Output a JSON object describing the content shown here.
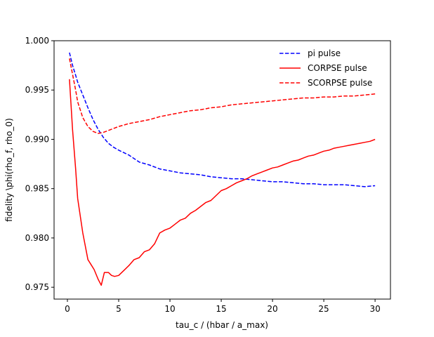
{
  "chart_data": {
    "type": "line",
    "xlabel": "tau_c / (hbar / a_max)",
    "ylabel": "fidelity \\phi(rho_f, rho_0)",
    "xlim": [
      -1.3,
      31.5
    ],
    "ylim": [
      0.9738,
      1.0
    ],
    "xticks": [
      "0",
      "5",
      "10",
      "15",
      "20",
      "25",
      "30"
    ],
    "yticks": [
      "0.975",
      "0.980",
      "0.985",
      "0.990",
      "0.995",
      "1.000"
    ],
    "grid": false,
    "legend_position": "top-right",
    "series": [
      {
        "name": "pi pulse",
        "color": "#0000ff",
        "dash": "dashed",
        "x": [
          0.2,
          0.5,
          0.8,
          1.0,
          1.5,
          2.0,
          2.5,
          3.0,
          3.5,
          4.0,
          4.5,
          5.0,
          6.0,
          7.0,
          8.0,
          9.0,
          10.0,
          11.0,
          12.0,
          13.0,
          14.0,
          15.0,
          16.0,
          17.0,
          18.0,
          19.0,
          20.0,
          21.0,
          22.0,
          23.0,
          24.0,
          25.0,
          26.0,
          27.0,
          28.0,
          29.0,
          30.0
        ],
        "y": [
          0.9988,
          0.9975,
          0.9965,
          0.9958,
          0.9945,
          0.9932,
          0.992,
          0.991,
          0.9902,
          0.9896,
          0.9892,
          0.9889,
          0.9884,
          0.9877,
          0.9874,
          0.987,
          0.9868,
          0.9866,
          0.9865,
          0.9864,
          0.9862,
          0.9861,
          0.986,
          0.986,
          0.9859,
          0.9858,
          0.9857,
          0.9857,
          0.9856,
          0.9855,
          0.9855,
          0.9854,
          0.9854,
          0.9854,
          0.9853,
          0.9852,
          0.9853
        ]
      },
      {
        "name": "CORPSE pulse",
        "color": "#ff0000",
        "dash": "solid",
        "x": [
          0.2,
          0.5,
          0.8,
          1.0,
          1.5,
          2.0,
          2.3,
          2.6,
          3.0,
          3.3,
          3.6,
          4.0,
          4.3,
          4.6,
          5.0,
          5.5,
          6.0,
          6.5,
          7.0,
          7.5,
          8.0,
          8.5,
          9.0,
          9.5,
          10.0,
          10.5,
          11.0,
          11.5,
          12.0,
          12.5,
          13.0,
          13.5,
          14.0,
          14.5,
          15.0,
          15.5,
          16.0,
          16.5,
          17.0,
          17.5,
          18.0,
          18.5,
          19.0,
          19.5,
          20.0,
          20.5,
          21.0,
          21.5,
          22.0,
          22.5,
          23.0,
          23.5,
          24.0,
          24.5,
          25.0,
          25.5,
          26.0,
          26.5,
          27.0,
          27.5,
          28.0,
          28.5,
          29.0,
          29.5,
          30.0
        ],
        "y": [
          0.9961,
          0.991,
          0.987,
          0.984,
          0.9805,
          0.9778,
          0.9773,
          0.9768,
          0.9758,
          0.9752,
          0.9765,
          0.9765,
          0.9762,
          0.9761,
          0.9762,
          0.9767,
          0.9772,
          0.9778,
          0.978,
          0.9786,
          0.9788,
          0.9794,
          0.9805,
          0.9808,
          0.981,
          0.9814,
          0.9818,
          0.982,
          0.9825,
          0.9828,
          0.9832,
          0.9836,
          0.9838,
          0.9843,
          0.9848,
          0.985,
          0.9853,
          0.9856,
          0.9858,
          0.986,
          0.9863,
          0.9865,
          0.9867,
          0.9869,
          0.9871,
          0.9872,
          0.9874,
          0.9876,
          0.9878,
          0.9879,
          0.9881,
          0.9883,
          0.9884,
          0.9886,
          0.9888,
          0.9889,
          0.9891,
          0.9892,
          0.9893,
          0.9894,
          0.9895,
          0.9896,
          0.9897,
          0.9898,
          0.99
        ]
      },
      {
        "name": "SCORPSE pulse",
        "color": "#ff0000",
        "dash": "dashed",
        "x": [
          0.2,
          0.5,
          0.8,
          1.0,
          1.5,
          2.0,
          2.5,
          3.0,
          3.5,
          4.0,
          5.0,
          6.0,
          7.0,
          8.0,
          9.0,
          10.0,
          11.0,
          12.0,
          13.0,
          14.0,
          15.0,
          16.0,
          17.0,
          18.0,
          19.0,
          20.0,
          21.0,
          22.0,
          23.0,
          24.0,
          25.0,
          26.0,
          27.0,
          28.0,
          29.0,
          30.0
        ],
        "y": [
          0.9982,
          0.9966,
          0.995,
          0.9938,
          0.9922,
          0.9913,
          0.9908,
          0.9906,
          0.9907,
          0.9909,
          0.9913,
          0.9916,
          0.9918,
          0.992,
          0.9923,
          0.9925,
          0.9927,
          0.9929,
          0.993,
          0.9932,
          0.9933,
          0.9935,
          0.9936,
          0.9937,
          0.9938,
          0.9939,
          0.994,
          0.9941,
          0.9942,
          0.9942,
          0.9943,
          0.9943,
          0.9944,
          0.9944,
          0.9945,
          0.9946
        ]
      }
    ]
  }
}
